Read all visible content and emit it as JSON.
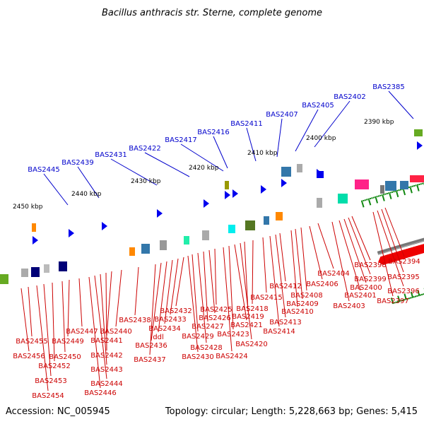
{
  "title": "Bacillus anthracis str. Sterne, complete genome",
  "footer": {
    "accession": "Accession: NC_005945",
    "summary": "Topology: circular; Length: 5,228,663 bp; Genes: 5,415"
  },
  "colors": {
    "forward_label": "#0000cc",
    "reverse_label": "#cc0000",
    "forward_gene": "#0000ee",
    "reverse_gene": "#ee0000",
    "backbone": "#777777",
    "tick": "#118811"
  },
  "scale_labels": [
    "2390 kbp",
    "2400 kbp",
    "2410 kbp",
    "2420 kbp",
    "2430 kbp",
    "2440 kbp",
    "2450 kbp"
  ],
  "forward_labels": [
    "BAS2385",
    "BAS2402",
    "BAS2405",
    "BAS2407",
    "BAS2411",
    "BAS2416",
    "BAS2417",
    "BAS2422",
    "BAS2431",
    "BAS2439",
    "BAS2445"
  ],
  "reverse_labels": [
    "BAS2394",
    "BAS2395",
    "BAS2396",
    "BAS2397",
    "BAS2398",
    "BAS2399",
    "BAS2400",
    "BAS2401",
    "BAS2403",
    "BAS2404",
    "BAS2406",
    "BAS2408",
    "BAS2409",
    "BAS2410",
    "BAS2412",
    "BAS2413",
    "BAS2414",
    "BAS2415",
    "BAS2418",
    "BAS2419",
    "BAS2420",
    "BAS2421",
    "BAS2423",
    "BAS2424",
    "BAS2425",
    "BAS2426",
    "BAS2427",
    "BAS2428",
    "BAS2429",
    "BAS2430",
    "BAS2432",
    "BAS2433",
    "BAS2434",
    "ddl",
    "BAS2436",
    "BAS2437",
    "BAS2438",
    "BAS2440",
    "BAS2441",
    "BAS2442",
    "BAS2443",
    "BAS2444",
    "BAS2446",
    "BAS2447",
    "BAS2449",
    "BAS2450",
    "BAS2452",
    "BAS2453",
    "BAS2454",
    "BAS2455",
    "BAS2456"
  ]
}
